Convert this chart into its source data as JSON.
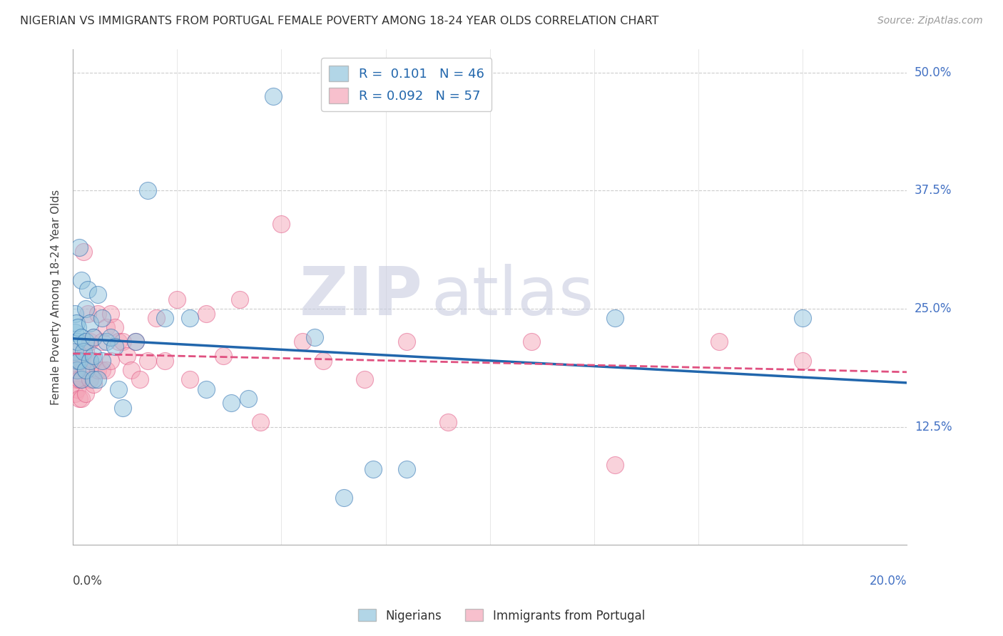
{
  "title": "NIGERIAN VS IMMIGRANTS FROM PORTUGAL FEMALE POVERTY AMONG 18-24 YEAR OLDS CORRELATION CHART",
  "source": "Source: ZipAtlas.com",
  "ylabel": "Female Poverty Among 18-24 Year Olds",
  "legend_r1": "R =  0.101",
  "legend_n1": "N = 46",
  "legend_r2": "R = 0.092",
  "legend_n2": "N = 57",
  "color_blue": "#92c5de",
  "color_pink": "#f4a6b8",
  "color_blue_line": "#2166ac",
  "color_pink_line": "#e05080",
  "watermark_zip": "ZIP",
  "watermark_atlas": "atlas",
  "watermark_color": "#c8cce0",
  "nigerians_x": [
    0.0005,
    0.0005,
    0.0005,
    0.0008,
    0.001,
    0.001,
    0.001,
    0.0012,
    0.0015,
    0.0015,
    0.002,
    0.002,
    0.002,
    0.0025,
    0.003,
    0.003,
    0.003,
    0.0035,
    0.004,
    0.004,
    0.005,
    0.005,
    0.005,
    0.006,
    0.006,
    0.007,
    0.007,
    0.008,
    0.009,
    0.01,
    0.011,
    0.012,
    0.015,
    0.018,
    0.022,
    0.028,
    0.032,
    0.038,
    0.042,
    0.048,
    0.058,
    0.065,
    0.072,
    0.08,
    0.13,
    0.175
  ],
  "nigerians_y": [
    0.245,
    0.225,
    0.205,
    0.235,
    0.215,
    0.195,
    0.185,
    0.23,
    0.315,
    0.195,
    0.28,
    0.22,
    0.175,
    0.205,
    0.25,
    0.215,
    0.185,
    0.27,
    0.235,
    0.195,
    0.22,
    0.2,
    0.175,
    0.265,
    0.175,
    0.24,
    0.195,
    0.215,
    0.22,
    0.21,
    0.165,
    0.145,
    0.215,
    0.375,
    0.24,
    0.24,
    0.165,
    0.15,
    0.155,
    0.475,
    0.22,
    0.05,
    0.08,
    0.08,
    0.24,
    0.24
  ],
  "portugal_x": [
    0.0005,
    0.0005,
    0.0008,
    0.001,
    0.001,
    0.001,
    0.0012,
    0.0015,
    0.0015,
    0.002,
    0.002,
    0.002,
    0.0025,
    0.003,
    0.003,
    0.003,
    0.0035,
    0.004,
    0.004,
    0.004,
    0.005,
    0.005,
    0.005,
    0.006,
    0.006,
    0.007,
    0.007,
    0.008,
    0.008,
    0.009,
    0.009,
    0.01,
    0.011,
    0.012,
    0.013,
    0.014,
    0.015,
    0.016,
    0.018,
    0.02,
    0.022,
    0.025,
    0.028,
    0.032,
    0.036,
    0.04,
    0.045,
    0.05,
    0.055,
    0.06,
    0.07,
    0.08,
    0.09,
    0.11,
    0.13,
    0.155,
    0.175
  ],
  "portugal_y": [
    0.185,
    0.16,
    0.175,
    0.205,
    0.185,
    0.165,
    0.195,
    0.175,
    0.155,
    0.195,
    0.175,
    0.155,
    0.31,
    0.205,
    0.185,
    0.16,
    0.245,
    0.215,
    0.195,
    0.175,
    0.22,
    0.195,
    0.17,
    0.245,
    0.185,
    0.215,
    0.185,
    0.23,
    0.185,
    0.245,
    0.195,
    0.23,
    0.215,
    0.215,
    0.2,
    0.185,
    0.215,
    0.175,
    0.195,
    0.24,
    0.195,
    0.26,
    0.175,
    0.245,
    0.2,
    0.26,
    0.13,
    0.34,
    0.215,
    0.195,
    0.175,
    0.215,
    0.13,
    0.215,
    0.085,
    0.215,
    0.195
  ],
  "xmin": 0.0,
  "xmax": 0.2,
  "ymin": 0.0,
  "ymax": 0.525,
  "fig_width": 14.06,
  "fig_height": 8.92
}
